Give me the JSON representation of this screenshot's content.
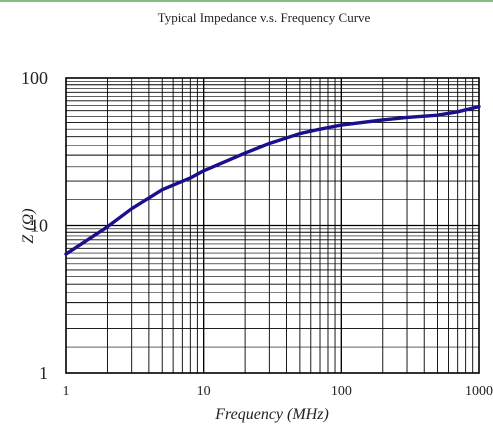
{
  "chart_data": {
    "type": "line",
    "title": "Typical Impedance v.s. Frequency Curve",
    "xlabel": "Frequency (MHz)",
    "ylabel": "Z (Ω)",
    "xscale": "log",
    "yscale": "log",
    "xlim": [
      1,
      1000
    ],
    "ylim": [
      1,
      100
    ],
    "grid": true,
    "x_tick_labels": [
      "1",
      "10",
      "100",
      "1000"
    ],
    "y_tick_labels": [
      "1",
      "10",
      "100"
    ],
    "series": [
      {
        "color": "#1a0f8c",
        "x": [
          1,
          2,
          3,
          5,
          8,
          10,
          20,
          30,
          50,
          70,
          100,
          200,
          300,
          500,
          700,
          1000
        ],
        "y": [
          6.4,
          9.8,
          13,
          17.5,
          21,
          23.5,
          31,
          36,
          42,
          45,
          48,
          52,
          54,
          56,
          59,
          64
        ]
      }
    ]
  }
}
